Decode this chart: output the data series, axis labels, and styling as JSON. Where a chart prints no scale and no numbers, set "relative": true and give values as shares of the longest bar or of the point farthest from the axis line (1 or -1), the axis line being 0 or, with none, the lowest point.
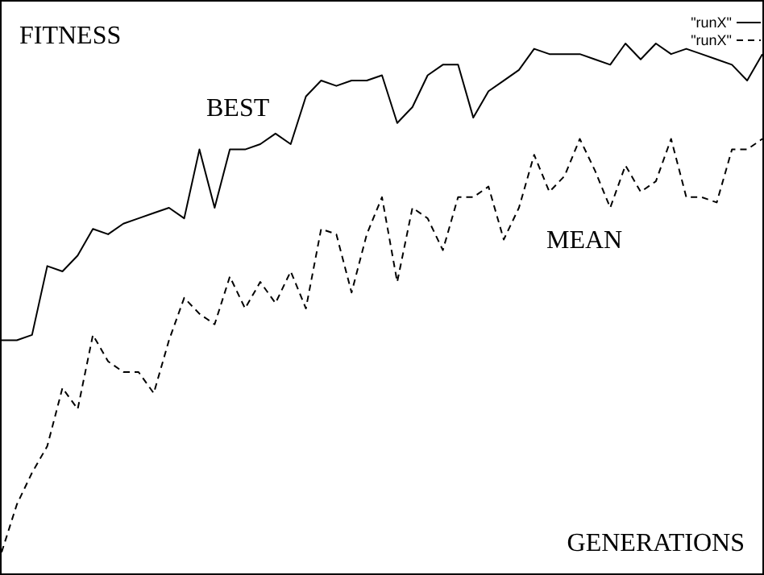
{
  "chart_data": {
    "type": "line",
    "relative": true,
    "xlabel": "GENERATIONS",
    "ylabel": "FITNESS",
    "annotations": [
      "BEST",
      "MEAN"
    ],
    "legend": "top right",
    "categories": [
      null,
      null,
      null,
      null,
      null,
      null,
      null,
      null,
      null,
      null,
      null,
      null,
      null,
      null,
      null,
      null,
      null,
      null,
      null,
      null,
      null,
      null,
      null,
      null,
      null,
      null,
      null,
      null,
      null,
      null,
      null,
      null,
      null,
      null,
      null,
      null,
      null,
      null,
      null,
      null,
      null,
      null,
      null,
      null,
      null,
      null,
      null,
      null,
      null,
      null,
      null
    ],
    "series": [
      {
        "name": "\"runX\"",
        "color": "#000000",
        "line_style": "solid",
        "values": [
          0.44,
          0.44,
          0.45,
          0.58,
          0.57,
          0.6,
          0.65,
          0.64,
          0.66,
          0.67,
          0.68,
          0.69,
          0.67,
          0.8,
          0.69,
          0.8,
          0.8,
          0.81,
          0.83,
          0.81,
          0.9,
          0.93,
          0.92,
          0.93,
          0.93,
          0.94,
          0.85,
          0.88,
          0.94,
          0.96,
          0.96,
          0.86,
          0.91,
          0.93,
          0.95,
          0.99,
          0.98,
          0.98,
          0.98,
          0.97,
          0.96,
          1,
          0.97,
          1,
          0.98,
          0.99,
          0.98,
          0.97,
          0.96,
          0.93,
          0.98
        ]
      },
      {
        "name": "\"runX\"",
        "color": "#000000",
        "line_style": "dashed",
        "values": [
          0.04,
          0.13,
          0.19,
          0.24,
          0.35,
          0.31,
          0.45,
          0.4,
          0.38,
          0.38,
          0.34,
          0.44,
          0.52,
          0.49,
          0.47,
          0.56,
          0.5,
          0.55,
          0.51,
          0.57,
          0.5,
          0.65,
          0.64,
          0.53,
          0.64,
          0.71,
          0.55,
          0.69,
          0.67,
          0.61,
          0.71,
          0.71,
          0.73,
          0.63,
          0.69,
          0.79,
          0.72,
          0.75,
          0.82,
          0.76,
          0.69,
          0.77,
          0.72,
          0.74,
          0.82,
          0.71,
          0.71,
          0.7,
          0.8,
          0.8,
          0.82
        ]
      }
    ]
  }
}
